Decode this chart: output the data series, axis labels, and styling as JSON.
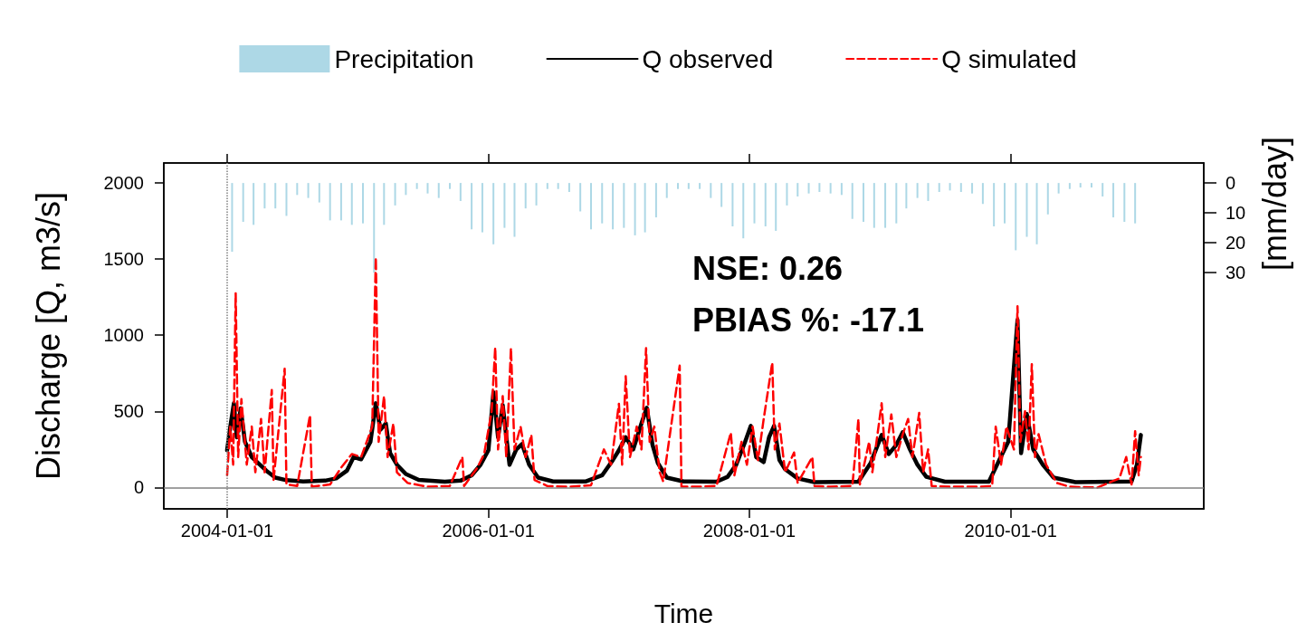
{
  "chart_data": {
    "type": "line",
    "xlabel": "Time",
    "ylabel": "Discharge [Q, m3/s]",
    "y2label": "[mm/day]",
    "annotations": [
      "NSE: 0.26",
      "PBIAS %: -17.1"
    ],
    "xlim": [
      "2003-07-08",
      "2011-06-25"
    ],
    "xticks": [
      "2004-01-01",
      "2006-01-01",
      "2008-01-01",
      "2010-01-01"
    ],
    "ylim": [
      -140,
      2130
    ],
    "yticks": [
      0,
      500,
      1000,
      1500,
      2000
    ],
    "y2lim": [
      109,
      -6.7
    ],
    "y2ticks": [
      0,
      10,
      20,
      30
    ],
    "legend": "top",
    "grid": false,
    "marker": "none",
    "ref_lines": [
      {
        "axis": "x",
        "value": "2004-01-01",
        "color": "#808080",
        "line_style": "dotted"
      },
      {
        "axis": "y",
        "value": 0,
        "color": "#808080",
        "line_style": "solid"
      }
    ],
    "series": [
      {
        "name": "Precipitation",
        "type": "bar",
        "axis": "y2",
        "color": "#add8e6",
        "x": [
          "2004-01-15",
          "2004-02-15",
          "2004-03-15",
          "2004-04-15",
          "2004-05-15",
          "2004-06-15",
          "2004-07-15",
          "2004-08-15",
          "2004-09-15",
          "2004-10-15",
          "2004-11-15",
          "2004-12-15",
          "2005-01-15",
          "2005-02-15",
          "2005-03-15",
          "2005-04-15",
          "2005-05-15",
          "2005-06-15",
          "2005-07-15",
          "2005-08-15",
          "2005-09-15",
          "2005-10-15",
          "2005-11-15",
          "2005-12-15",
          "2006-01-15",
          "2006-02-15",
          "2006-03-15",
          "2006-04-15",
          "2006-05-15",
          "2006-06-15",
          "2006-07-15",
          "2006-08-15",
          "2006-09-15",
          "2006-10-15",
          "2006-11-15",
          "2006-12-15",
          "2007-01-15",
          "2007-02-15",
          "2007-03-15",
          "2007-04-15",
          "2007-05-15",
          "2007-06-15",
          "2007-07-15",
          "2007-08-15",
          "2007-09-15",
          "2007-10-15",
          "2007-11-15",
          "2007-12-15",
          "2008-01-15",
          "2008-02-15",
          "2008-03-15",
          "2008-04-15",
          "2008-05-15",
          "2008-06-15",
          "2008-07-15",
          "2008-08-15",
          "2008-09-15",
          "2008-10-15",
          "2008-11-15",
          "2008-12-15",
          "2009-01-15",
          "2009-02-15",
          "2009-03-15",
          "2009-04-15",
          "2009-05-15",
          "2009-06-15",
          "2009-07-15",
          "2009-08-15",
          "2009-09-15",
          "2009-10-15",
          "2009-11-15",
          "2009-12-15",
          "2010-01-15",
          "2010-02-15",
          "2010-03-15",
          "2010-04-15",
          "2010-05-15",
          "2010-06-15",
          "2010-07-15",
          "2010-08-15",
          "2010-09-15",
          "2010-10-15",
          "2010-11-15",
          "2010-12-15"
        ],
        "values": [
          23,
          13,
          14,
          8.5,
          8.5,
          11,
          4,
          5,
          6.5,
          12.5,
          12.5,
          14,
          13.5,
          30,
          14,
          7.5,
          4,
          2,
          3.5,
          5,
          2,
          6,
          15.5,
          16.5,
          20.5,
          15,
          18,
          8.5,
          7.5,
          2,
          2,
          3,
          9.5,
          15.5,
          13.5,
          15.5,
          15,
          17.5,
          16.5,
          11.5,
          5,
          2,
          2,
          2,
          5,
          8,
          14.5,
          18.5,
          13.5,
          14.5,
          16,
          7.5,
          4.5,
          3.5,
          3,
          3.5,
          4,
          12,
          13,
          15,
          15,
          13.5,
          8.5,
          5,
          6,
          3,
          2.5,
          3,
          3.5,
          7,
          14.5,
          13.5,
          22.5,
          18,
          20.5,
          10.5,
          3.5,
          2,
          1.5,
          1.5,
          4.5,
          11.5,
          13,
          13.5
        ]
      },
      {
        "name": "Q observed",
        "color": "#000000",
        "line_style": "solid",
        "x": [
          "2004-01-01",
          "2004-01-10",
          "2004-01-20",
          "2004-01-28",
          "2004-02-08",
          "2004-02-20",
          "2004-03-10",
          "2004-03-25",
          "2004-04-20",
          "2004-05-15",
          "2004-06-15",
          "2004-08-01",
          "2004-10-01",
          "2004-11-01",
          "2004-12-01",
          "2004-12-20",
          "2005-01-10",
          "2005-02-05",
          "2005-02-20",
          "2005-03-05",
          "2005-03-20",
          "2005-04-01",
          "2005-04-20",
          "2005-05-15",
          "2005-06-20",
          "2005-09-01",
          "2005-10-15",
          "2005-11-15",
          "2005-12-10",
          "2006-01-01",
          "2006-01-15",
          "2006-01-28",
          "2006-02-10",
          "2006-03-01",
          "2006-03-20",
          "2006-04-05",
          "2006-04-25",
          "2006-05-20",
          "2006-07-01",
          "2006-10-01",
          "2006-11-15",
          "2006-12-15",
          "2007-01-01",
          "2007-01-20",
          "2007-02-10",
          "2007-03-05",
          "2007-03-20",
          "2007-04-05",
          "2007-04-20",
          "2007-05-15",
          "2007-07-01",
          "2007-10-01",
          "2007-11-01",
          "2007-11-25",
          "2007-12-20",
          "2008-01-05",
          "2008-01-20",
          "2008-02-10",
          "2008-02-25",
          "2008-03-10",
          "2008-03-25",
          "2008-04-10",
          "2008-05-15",
          "2008-07-01",
          "2008-11-01",
          "2008-12-05",
          "2009-01-05",
          "2009-01-25",
          "2009-02-15",
          "2009-03-05",
          "2009-03-25",
          "2009-04-15",
          "2009-05-10",
          "2009-07-01",
          "2009-11-01",
          "2009-12-01",
          "2009-12-25",
          "2010-01-20",
          "2010-01-30",
          "2010-02-15",
          "2010-03-05",
          "2010-04-01",
          "2010-05-01",
          "2010-07-01",
          "2010-12-05",
          "2010-12-20",
          "2010-12-31"
        ],
        "values": [
          245,
          400,
          553,
          330,
          520,
          300,
          200,
          167,
          110,
          65,
          48,
          40,
          45,
          60,
          110,
          200,
          185,
          300,
          553,
          380,
          420,
          226,
          150,
          89,
          50,
          38,
          45,
          80,
          150,
          245,
          625,
          330,
          541,
          149,
          250,
          285,
          150,
          65,
          40,
          40,
          80,
          180,
          245,
          330,
          250,
          420,
          524,
          280,
          160,
          65,
          40,
          38,
          70,
          149,
          300,
          405,
          200,
          167,
          330,
          405,
          180,
          120,
          60,
          35,
          38,
          160,
          345,
          220,
          280,
          363,
          250,
          150,
          70,
          38,
          38,
          185,
          300,
          1100,
          226,
          482,
          250,
          149,
          65,
          35,
          40,
          150,
          345
        ]
      },
      {
        "name": "Q simulated",
        "color": "#ff0000",
        "line_style": "dashed",
        "x": [
          "2004-01-01",
          "2004-01-10",
          "2004-01-18",
          "2004-01-25",
          "2004-02-01",
          "2004-02-10",
          "2004-02-25",
          "2004-03-10",
          "2004-03-20",
          "2004-04-05",
          "2004-04-15",
          "2004-05-05",
          "2004-05-10",
          "2004-06-10",
          "2004-06-15",
          "2004-07-15",
          "2004-08-20",
          "2004-08-25",
          "2004-10-15",
          "2004-11-15",
          "2004-12-15",
          "2005-01-10",
          "2005-02-10",
          "2005-02-20",
          "2005-02-28",
          "2005-03-15",
          "2005-03-25",
          "2005-04-10",
          "2005-04-20",
          "2005-05-20",
          "2005-07-15",
          "2005-09-15",
          "2005-10-20",
          "2005-10-25",
          "2005-12-01",
          "2005-12-20",
          "2006-01-10",
          "2006-01-20",
          "2006-01-28",
          "2006-02-10",
          "2006-02-20",
          "2006-03-05",
          "2006-03-15",
          "2006-04-01",
          "2006-04-15",
          "2006-05-01",
          "2006-05-10",
          "2006-06-15",
          "2006-08-15",
          "2006-10-15",
          "2006-11-20",
          "2006-12-10",
          "2007-01-01",
          "2007-01-10",
          "2007-01-20",
          "2007-02-01",
          "2007-02-20",
          "2007-03-05",
          "2007-03-18",
          "2007-03-28",
          "2007-04-10",
          "2007-04-25",
          "2007-05-05",
          "2007-06-20",
          "2007-06-25",
          "2007-08-15",
          "2007-10-01",
          "2007-11-10",
          "2007-11-20",
          "2007-12-10",
          "2007-12-25",
          "2008-01-10",
          "2008-01-25",
          "2008-02-10",
          "2008-03-05",
          "2008-03-12",
          "2008-03-25",
          "2008-04-10",
          "2008-05-05",
          "2008-05-15",
          "2008-06-25",
          "2008-07-01",
          "2008-08-15",
          "2008-10-15",
          "2008-11-01",
          "2008-11-05",
          "2008-12-01",
          "2008-12-10",
          "2009-01-05",
          "2009-01-15",
          "2009-02-01",
          "2009-02-15",
          "2009-03-05",
          "2009-03-20",
          "2009-04-01",
          "2009-04-20",
          "2009-05-01",
          "2009-05-15",
          "2009-05-25",
          "2009-07-15",
          "2009-10-01",
          "2009-11-10",
          "2009-11-20",
          "2009-12-05",
          "2009-12-20",
          "2010-01-10",
          "2010-01-20",
          "2010-01-28",
          "2010-02-10",
          "2010-02-20",
          "2010-03-01",
          "2010-03-10",
          "2010-03-20",
          "2010-04-10",
          "2010-05-10",
          "2010-06-15",
          "2010-09-01",
          "2010-11-01",
          "2010-11-20",
          "2010-12-05",
          "2010-12-15",
          "2010-12-25",
          "2010-12-31"
        ],
        "values": [
          80,
          400,
          150,
          1275,
          200,
          580,
          150,
          400,
          100,
          450,
          100,
          640,
          50,
          780,
          20,
          10,
          475,
          5,
          20,
          130,
          220,
          200,
          400,
          1510,
          300,
          600,
          200,
          420,
          100,
          30,
          5,
          10,
          200,
          10,
          130,
          220,
          500,
          920,
          250,
          600,
          200,
          915,
          250,
          400,
          200,
          345,
          50,
          10,
          5,
          15,
          250,
          150,
          550,
          150,
          730,
          200,
          400,
          250,
          915,
          300,
          400,
          100,
          40,
          800,
          5,
          5,
          10,
          360,
          80,
          300,
          150,
          400,
          180,
          450,
          820,
          250,
          420,
          100,
          230,
          30,
          200,
          10,
          5,
          10,
          450,
          20,
          300,
          100,
          553,
          200,
          480,
          200,
          350,
          450,
          200,
          490,
          100,
          250,
          10,
          5,
          5,
          10,
          400,
          150,
          400,
          250,
          1190,
          300,
          500,
          250,
          810,
          200,
          350,
          150,
          30,
          5,
          0,
          60,
          200,
          20,
          370,
          80,
          200
        ]
      }
    ]
  }
}
